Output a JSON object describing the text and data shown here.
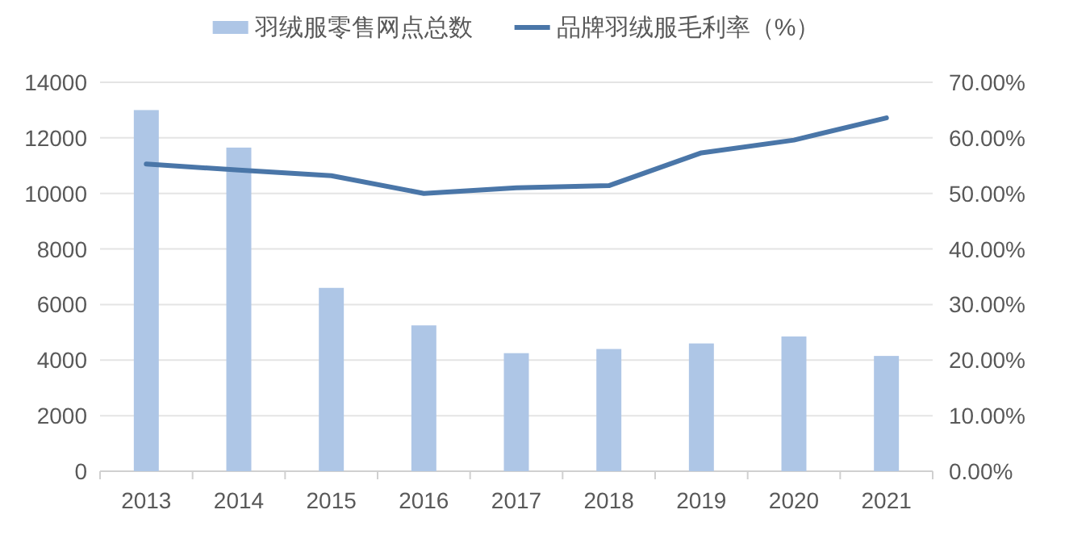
{
  "chart_data": {
    "type": "bar",
    "categories": [
      "2013",
      "2014",
      "2015",
      "2016",
      "2017",
      "2018",
      "2019",
      "2020",
      "2021"
    ],
    "series": [
      {
        "name": "羽绒服零售网点总数",
        "color": "#aec6e6",
        "values": [
          13000,
          11650,
          6600,
          5250,
          4250,
          4400,
          4600,
          4850,
          4150
        ]
      },
      {
        "name": "品牌羽绒服毛利率（%）",
        "type": "line",
        "axis": "y2",
        "color": "#4a76a8",
        "values": [
          55.3,
          54.2,
          53.2,
          50.0,
          51.0,
          51.4,
          57.3,
          59.6,
          63.6
        ]
      }
    ],
    "ylim": [
      0,
      14000
    ],
    "yticks": [
      0,
      2000,
      4000,
      6000,
      8000,
      10000,
      12000,
      14000
    ],
    "y2lim": [
      0,
      70
    ],
    "y2ticks": [
      {
        "value": 0,
        "label": "0.00%"
      },
      {
        "value": 10,
        "label": "10.00%"
      },
      {
        "value": 20,
        "label": "20.00%"
      },
      {
        "value": 30,
        "label": "30.00%"
      },
      {
        "value": 40,
        "label": "40.00%"
      },
      {
        "value": 50,
        "label": "50.00%"
      },
      {
        "value": 60,
        "label": "60.00%"
      },
      {
        "value": 70,
        "label": "70.00%"
      }
    ],
    "grid": "y",
    "legend": "top"
  }
}
